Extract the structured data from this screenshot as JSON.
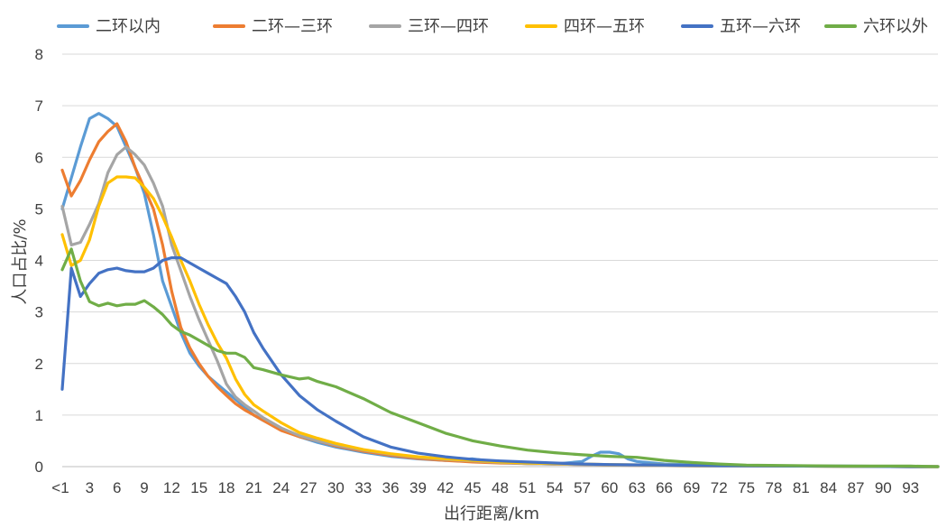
{
  "chart_data": {
    "type": "line",
    "title": "",
    "xlabel": "出行距离/km",
    "ylabel": "人口占比/%",
    "ylim": [
      0,
      8
    ],
    "yticks": [
      0,
      1,
      2,
      3,
      4,
      5,
      6,
      7,
      8
    ],
    "x_tick_labels": [
      "<1",
      "3",
      "6",
      "9",
      "12",
      "15",
      "18",
      "21",
      "24",
      "27",
      "30",
      "33",
      "36",
      "39",
      "42",
      "45",
      "48",
      "51",
      "54",
      "57",
      "60",
      "63",
      "66",
      "69",
      "72",
      "75",
      "78",
      "81",
      "84",
      "87",
      "90",
      "93"
    ],
    "x_range": [
      0,
      96
    ],
    "legend_position": "top",
    "grid": "horizontal",
    "series": [
      {
        "name": "二环以内",
        "color": "#5B9BD5",
        "points": [
          [
            0,
            5.0
          ],
          [
            1,
            5.6
          ],
          [
            2,
            6.2
          ],
          [
            3,
            6.75
          ],
          [
            4,
            6.85
          ],
          [
            5,
            6.75
          ],
          [
            6,
            6.6
          ],
          [
            7,
            6.2
          ],
          [
            8,
            5.8
          ],
          [
            9,
            5.3
          ],
          [
            10,
            4.5
          ],
          [
            11,
            3.6
          ],
          [
            12,
            3.1
          ],
          [
            13,
            2.6
          ],
          [
            14,
            2.2
          ],
          [
            15,
            1.95
          ],
          [
            16,
            1.75
          ],
          [
            17,
            1.6
          ],
          [
            18,
            1.45
          ],
          [
            19,
            1.3
          ],
          [
            20,
            1.15
          ],
          [
            21,
            1.0
          ],
          [
            22,
            0.9
          ],
          [
            24,
            0.72
          ],
          [
            26,
            0.58
          ],
          [
            28,
            0.47
          ],
          [
            30,
            0.38
          ],
          [
            33,
            0.28
          ],
          [
            36,
            0.2
          ],
          [
            39,
            0.15
          ],
          [
            42,
            0.12
          ],
          [
            45,
            0.15
          ],
          [
            48,
            0.08
          ],
          [
            51,
            0.06
          ],
          [
            54,
            0.05
          ],
          [
            57,
            0.1
          ],
          [
            58,
            0.2
          ],
          [
            59,
            0.28
          ],
          [
            60,
            0.28
          ],
          [
            61,
            0.25
          ],
          [
            62,
            0.15
          ],
          [
            63,
            0.1
          ],
          [
            66,
            0.05
          ],
          [
            70,
            0.03
          ],
          [
            75,
            0.02
          ],
          [
            80,
            0.01
          ],
          [
            86,
            0.01
          ],
          [
            93,
            0.0
          ],
          [
            96,
            0.0
          ]
        ]
      },
      {
        "name": "二环—三环",
        "color": "#ED7D31",
        "points": [
          [
            0,
            5.75
          ],
          [
            1,
            5.25
          ],
          [
            2,
            5.55
          ],
          [
            3,
            5.95
          ],
          [
            4,
            6.3
          ],
          [
            5,
            6.5
          ],
          [
            6,
            6.65
          ],
          [
            7,
            6.3
          ],
          [
            8,
            5.8
          ],
          [
            9,
            5.4
          ],
          [
            10,
            5.0
          ],
          [
            11,
            4.3
          ],
          [
            12,
            3.4
          ],
          [
            13,
            2.7
          ],
          [
            14,
            2.3
          ],
          [
            15,
            2.0
          ],
          [
            16,
            1.75
          ],
          [
            17,
            1.55
          ],
          [
            18,
            1.38
          ],
          [
            19,
            1.22
          ],
          [
            20,
            1.1
          ],
          [
            21,
            1.0
          ],
          [
            22,
            0.9
          ],
          [
            24,
            0.7
          ],
          [
            26,
            0.58
          ],
          [
            28,
            0.5
          ],
          [
            30,
            0.4
          ],
          [
            33,
            0.3
          ],
          [
            36,
            0.22
          ],
          [
            39,
            0.16
          ],
          [
            42,
            0.12
          ],
          [
            45,
            0.09
          ],
          [
            48,
            0.07
          ],
          [
            51,
            0.06
          ],
          [
            54,
            0.05
          ],
          [
            57,
            0.04
          ],
          [
            60,
            0.03
          ],
          [
            66,
            0.02
          ],
          [
            72,
            0.01
          ],
          [
            80,
            0.01
          ],
          [
            93,
            0.0
          ],
          [
            96,
            0.0
          ]
        ]
      },
      {
        "name": "三环—四环",
        "color": "#A5A5A5",
        "points": [
          [
            0,
            5.05
          ],
          [
            1,
            4.3
          ],
          [
            2,
            4.35
          ],
          [
            3,
            4.7
          ],
          [
            4,
            5.1
          ],
          [
            5,
            5.7
          ],
          [
            6,
            6.05
          ],
          [
            7,
            6.2
          ],
          [
            8,
            6.05
          ],
          [
            9,
            5.85
          ],
          [
            10,
            5.5
          ],
          [
            11,
            5.05
          ],
          [
            12,
            4.3
          ],
          [
            13,
            3.8
          ],
          [
            14,
            3.3
          ],
          [
            15,
            2.85
          ],
          [
            16,
            2.45
          ],
          [
            17,
            2.05
          ],
          [
            18,
            1.6
          ],
          [
            19,
            1.35
          ],
          [
            20,
            1.2
          ],
          [
            21,
            1.08
          ],
          [
            22,
            0.95
          ],
          [
            24,
            0.75
          ],
          [
            26,
            0.6
          ],
          [
            28,
            0.5
          ],
          [
            30,
            0.42
          ],
          [
            33,
            0.32
          ],
          [
            36,
            0.24
          ],
          [
            39,
            0.18
          ],
          [
            42,
            0.14
          ],
          [
            45,
            0.11
          ],
          [
            48,
            0.08
          ],
          [
            51,
            0.06
          ],
          [
            54,
            0.05
          ],
          [
            57,
            0.04
          ],
          [
            60,
            0.03
          ],
          [
            66,
            0.02
          ],
          [
            72,
            0.01
          ],
          [
            80,
            0.01
          ],
          [
            93,
            0.0
          ],
          [
            96,
            0.0
          ]
        ]
      },
      {
        "name": "四环—五环",
        "color": "#FFC000",
        "points": [
          [
            0,
            4.5
          ],
          [
            1,
            3.9
          ],
          [
            2,
            4.0
          ],
          [
            3,
            4.4
          ],
          [
            4,
            5.05
          ],
          [
            5,
            5.5
          ],
          [
            6,
            5.62
          ],
          [
            7,
            5.62
          ],
          [
            8,
            5.6
          ],
          [
            9,
            5.42
          ],
          [
            10,
            5.2
          ],
          [
            11,
            4.85
          ],
          [
            12,
            4.45
          ],
          [
            13,
            4.0
          ],
          [
            14,
            3.6
          ],
          [
            15,
            3.15
          ],
          [
            16,
            2.75
          ],
          [
            17,
            2.4
          ],
          [
            18,
            2.1
          ],
          [
            19,
            1.7
          ],
          [
            20,
            1.4
          ],
          [
            21,
            1.2
          ],
          [
            22,
            1.08
          ],
          [
            24,
            0.85
          ],
          [
            26,
            0.66
          ],
          [
            28,
            0.55
          ],
          [
            30,
            0.45
          ],
          [
            33,
            0.33
          ],
          [
            36,
            0.25
          ],
          [
            39,
            0.19
          ],
          [
            42,
            0.15
          ],
          [
            45,
            0.12
          ],
          [
            48,
            0.09
          ],
          [
            51,
            0.07
          ],
          [
            54,
            0.06
          ],
          [
            57,
            0.05
          ],
          [
            60,
            0.04
          ],
          [
            66,
            0.03
          ],
          [
            72,
            0.02
          ],
          [
            80,
            0.01
          ],
          [
            93,
            0.0
          ],
          [
            96,
            0.0
          ]
        ]
      },
      {
        "name": "五环—六环",
        "color": "#4472C4",
        "points": [
          [
            0,
            1.5
          ],
          [
            1,
            3.85
          ],
          [
            2,
            3.3
          ],
          [
            3,
            3.55
          ],
          [
            4,
            3.75
          ],
          [
            5,
            3.82
          ],
          [
            6,
            3.85
          ],
          [
            7,
            3.8
          ],
          [
            8,
            3.78
          ],
          [
            9,
            3.78
          ],
          [
            10,
            3.85
          ],
          [
            11,
            4.0
          ],
          [
            12,
            4.05
          ],
          [
            13,
            4.05
          ],
          [
            14,
            3.95
          ],
          [
            15,
            3.85
          ],
          [
            16,
            3.75
          ],
          [
            17,
            3.65
          ],
          [
            18,
            3.55
          ],
          [
            19,
            3.3
          ],
          [
            20,
            3.0
          ],
          [
            21,
            2.6
          ],
          [
            22,
            2.3
          ],
          [
            24,
            1.78
          ],
          [
            26,
            1.38
          ],
          [
            28,
            1.1
          ],
          [
            30,
            0.88
          ],
          [
            33,
            0.58
          ],
          [
            36,
            0.38
          ],
          [
            39,
            0.26
          ],
          [
            42,
            0.19
          ],
          [
            45,
            0.14
          ],
          [
            48,
            0.11
          ],
          [
            51,
            0.09
          ],
          [
            54,
            0.07
          ],
          [
            57,
            0.05
          ],
          [
            60,
            0.04
          ],
          [
            66,
            0.03
          ],
          [
            72,
            0.02
          ],
          [
            80,
            0.01
          ],
          [
            93,
            0.0
          ],
          [
            96,
            0.0
          ]
        ]
      },
      {
        "name": "六环以外",
        "color": "#70AD47",
        "points": [
          [
            0,
            3.82
          ],
          [
            1,
            4.22
          ],
          [
            2,
            3.6
          ],
          [
            3,
            3.2
          ],
          [
            4,
            3.12
          ],
          [
            5,
            3.17
          ],
          [
            6,
            3.12
          ],
          [
            7,
            3.15
          ],
          [
            8,
            3.15
          ],
          [
            9,
            3.22
          ],
          [
            10,
            3.1
          ],
          [
            11,
            2.95
          ],
          [
            12,
            2.75
          ],
          [
            13,
            2.62
          ],
          [
            14,
            2.55
          ],
          [
            15,
            2.45
          ],
          [
            16,
            2.35
          ],
          [
            17,
            2.25
          ],
          [
            18,
            2.2
          ],
          [
            19,
            2.2
          ],
          [
            20,
            2.12
          ],
          [
            21,
            1.92
          ],
          [
            22,
            1.88
          ],
          [
            24,
            1.78
          ],
          [
            26,
            1.7
          ],
          [
            27,
            1.72
          ],
          [
            28,
            1.65
          ],
          [
            30,
            1.55
          ],
          [
            33,
            1.32
          ],
          [
            36,
            1.05
          ],
          [
            39,
            0.85
          ],
          [
            42,
            0.65
          ],
          [
            45,
            0.5
          ],
          [
            48,
            0.4
          ],
          [
            51,
            0.32
          ],
          [
            54,
            0.27
          ],
          [
            57,
            0.23
          ],
          [
            60,
            0.2
          ],
          [
            63,
            0.18
          ],
          [
            66,
            0.12
          ],
          [
            69,
            0.08
          ],
          [
            72,
            0.05
          ],
          [
            75,
            0.03
          ],
          [
            80,
            0.02
          ],
          [
            86,
            0.01
          ],
          [
            93,
            0.01
          ],
          [
            96,
            0.0
          ]
        ]
      }
    ]
  }
}
